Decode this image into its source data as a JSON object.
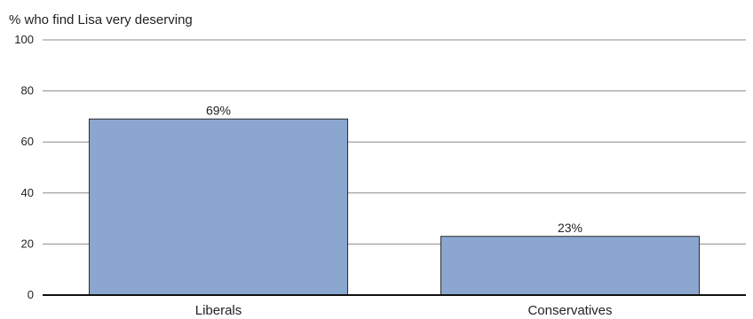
{
  "chart_data": {
    "type": "bar",
    "title": "",
    "ylabel": "% who find Lisa very deserving",
    "xlabel": "",
    "categories": [
      "Liberals",
      "Conservatives"
    ],
    "values": [
      69,
      23
    ],
    "data_labels": [
      "69%",
      "23%"
    ],
    "ylim": [
      0,
      100
    ],
    "yticks": [
      0,
      20,
      40,
      60,
      80,
      100
    ],
    "grid": true,
    "legend": "none",
    "colors": {
      "bar_fill": "#8ba7d0",
      "bar_stroke": "#2b2b2b",
      "gridline": "#8c8c8c",
      "baseline": "#111111",
      "text": "#222222"
    }
  }
}
